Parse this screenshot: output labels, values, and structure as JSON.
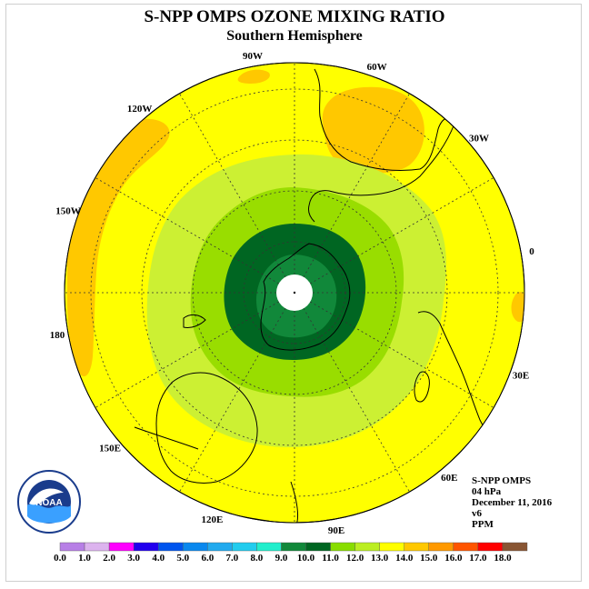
{
  "title": "S-NPP OMPS OZONE MIXING RATIO",
  "subtitle": "Southern Hemisphere",
  "info": {
    "instrument": "S-NPP OMPS",
    "level": "04 hPa",
    "date": "December 11, 2016",
    "version": "v6",
    "units": "PPM"
  },
  "longitude_labels": [
    "90W",
    "60W",
    "30W",
    "0",
    "30E",
    "60E",
    "90E",
    "120E",
    "150E",
    "180",
    "150W",
    "120W"
  ],
  "colorbar": {
    "ticks": [
      "0.0",
      "1.0",
      "2.0",
      "3.0",
      "4.0",
      "5.0",
      "6.0",
      "7.0",
      "8.0",
      "9.0",
      "10.0",
      "11.0",
      "12.0",
      "13.0",
      "14.0",
      "15.0",
      "16.0",
      "17.0",
      "18.0"
    ],
    "colors": [
      "#b77fe6",
      "#dcb3ee",
      "#ff00ff",
      "#2200ee",
      "#0055ee",
      "#0a88ee",
      "#22aaee",
      "#22ccee",
      "#22eecc",
      "#11883a",
      "#006622",
      "#88dd00",
      "#bbee22",
      "#ffff00",
      "#ffc800",
      "#ff9900",
      "#ff5500",
      "#ff0000",
      "#885533"
    ]
  },
  "map": {
    "background_color": "#ffff00",
    "ozone_levels": [
      {
        "range": "12.0-13.0",
        "color": "#ccf033"
      },
      {
        "range": "11.0-12.0",
        "color": "#99dd00"
      },
      {
        "range": "10.0-11.0",
        "color": "#006622"
      },
      {
        "range": "9.0-10.0",
        "color": "#11883a"
      },
      {
        "range": "13.0-14.0",
        "color": "#ffc800"
      }
    ]
  },
  "logo": {
    "text": "NOAA"
  }
}
